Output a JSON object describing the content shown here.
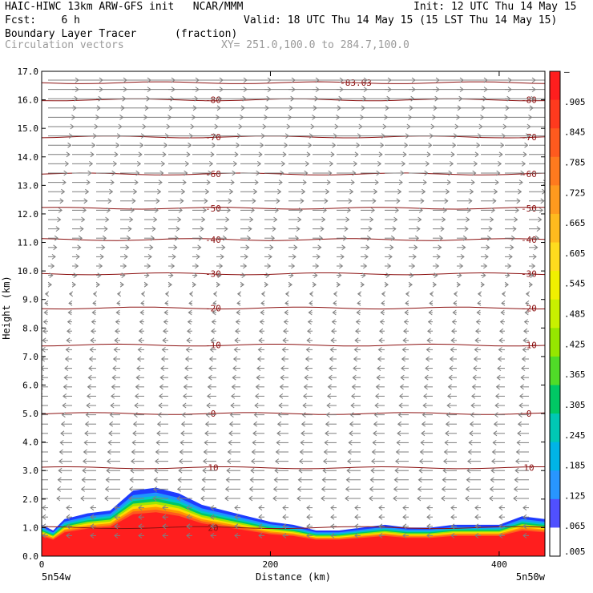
{
  "header": {
    "line1_left": "HAIC-HIWC 13km ARW-GFS init   NCAR/MMM",
    "line1_right": "Init: 12 UTC Thu 14 May 15",
    "line2_left": "Fcst:    6 h",
    "line2_right": "Valid: 18 UTC Thu 14 May 15 (15 LST Thu 14 May 15)",
    "line3_left": "Boundary Layer Tracer",
    "line3_mid": "(fraction)",
    "line4_left": "Circulation vectors",
    "line4_mid": "XY= 251.0,100.0 to 284.7,100.0"
  },
  "chart_data": {
    "type": "heatmap",
    "xlabel": "Distance (km)",
    "ylabel": "Height (km)",
    "xlim": [
      0,
      440
    ],
    "ylim": [
      0,
      17
    ],
    "x_ticks": [
      "0",
      "200",
      "400"
    ],
    "y_ticks": [
      "0.0",
      "1.0",
      "2.0",
      "3.0",
      "4.0",
      "5.0",
      "6.0",
      "7.0",
      "8.0",
      "9.0",
      "10.0",
      "11.0",
      "12.0",
      "13.0",
      "14.0",
      "15.0",
      "16.0",
      "17.0"
    ],
    "x_end_labels": {
      "left": "5n54w",
      "right": "5n50w"
    },
    "colorbar": {
      "labels": [
        "–",
        ".905",
        ".845",
        ".785",
        ".725",
        ".665",
        ".605",
        ".545",
        ".485",
        ".425",
        ".365",
        ".305",
        ".245",
        ".185",
        ".125",
        ".065",
        ".005"
      ],
      "colors": [
        "#ff1e1e",
        "#ff3a1e",
        "#ff5a1e",
        "#ff7a1e",
        "#ff9a1e",
        "#ffba1e",
        "#ffdc1e",
        "#f0f000",
        "#c8f000",
        "#96e600",
        "#50dc28",
        "#00c864",
        "#00c8b4",
        "#00b4e6",
        "#2896ff",
        "#5050ff",
        "#ffffff"
      ]
    },
    "contours": [
      {
        "label": "-83.03",
        "y": 16.6
      },
      {
        "label": "-80",
        "y": 16.0
      },
      {
        "label": "-70",
        "y": 14.7
      },
      {
        "label": "-60",
        "y": 13.4
      },
      {
        "label": "-50",
        "y": 12.2
      },
      {
        "label": "-40",
        "y": 11.1
      },
      {
        "label": "-30",
        "y": 9.9
      },
      {
        "label": "-20",
        "y": 8.7
      },
      {
        "label": "-10",
        "y": 7.4
      },
      {
        "label": "0",
        "y": 5.0
      },
      {
        "label": "10",
        "y": 3.1
      },
      {
        "label": "20",
        "y": 1.0
      }
    ],
    "tracer_top_profile": {
      "x": [
        0,
        10,
        20,
        40,
        60,
        80,
        100,
        120,
        140,
        160,
        180,
        200,
        220,
        240,
        260,
        280,
        300,
        320,
        340,
        360,
        380,
        400,
        420,
        440
      ],
      "height": [
        1.1,
        0.9,
        1.3,
        1.5,
        1.6,
        2.3,
        2.4,
        2.2,
        1.8,
        1.6,
        1.4,
        1.2,
        1.1,
        0.9,
        0.9,
        1.0,
        1.1,
        1.0,
        1.0,
        1.1,
        1.1,
        1.1,
        1.4,
        1.3
      ]
    }
  }
}
